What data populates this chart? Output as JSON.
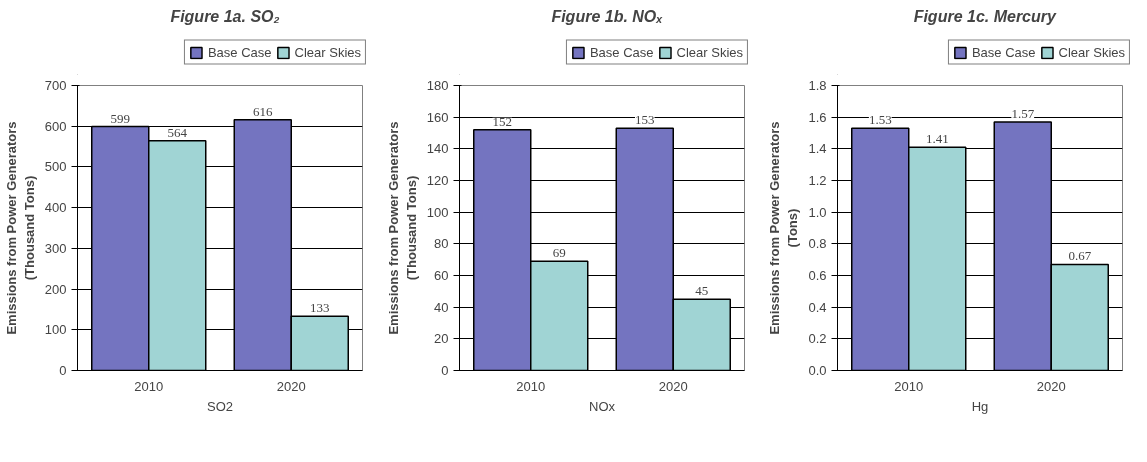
{
  "chart_data": [
    {
      "type": "bar",
      "title": "Figure 1a. SO₂",
      "xlabel": "SO2",
      "ylabel": "Emissions from Power Generators (Thousand Tons)",
      "categories": [
        "2010",
        "2020"
      ],
      "series": [
        {
          "name": "Base Case",
          "color": "#7474c0",
          "values": [
            599,
            616
          ]
        },
        {
          "name": "Clear Skies",
          "color": "#a0d4d4",
          "values": [
            564,
            133
          ]
        }
      ],
      "ylim": [
        0,
        700
      ],
      "yticks": [
        0,
        100,
        200,
        300,
        400,
        500,
        600,
        700
      ],
      "grid": "y",
      "legend": "top",
      "data_labels": true
    },
    {
      "type": "bar",
      "title": "Figure 1b. NOₓ",
      "xlabel": "NOx",
      "ylabel": "Emissions from Power Generators (Thousand Tons)",
      "categories": [
        "2010",
        "2020"
      ],
      "series": [
        {
          "name": "Base Case",
          "color": "#7474c0",
          "values": [
            152,
            153
          ]
        },
        {
          "name": "Clear Skies",
          "color": "#a0d4d4",
          "values": [
            69,
            45
          ]
        }
      ],
      "ylim": [
        0,
        180
      ],
      "yticks": [
        0,
        20,
        40,
        60,
        80,
        100,
        120,
        140,
        160,
        180
      ],
      "grid": "y",
      "legend": "top",
      "data_labels": true
    },
    {
      "type": "bar",
      "title": "Figure 1c.  Mercury",
      "xlabel": "Hg",
      "ylabel": "Emissions from Power Generators (Tons)",
      "categories": [
        "2010",
        "2020"
      ],
      "series": [
        {
          "name": "Base Case",
          "color": "#7474c0",
          "values": [
            1.53,
            1.57
          ]
        },
        {
          "name": "Clear Skies",
          "color": "#a0d4d4",
          "values": [
            1.41,
            0.67
          ]
        }
      ],
      "ylim": [
        0,
        1.8
      ],
      "yticks": [
        {
          "value": 0,
          "label": "0.0"
        },
        0.2,
        0.4,
        0.6,
        0.8,
        {
          "value": 1,
          "label": "1.0"
        },
        1.2,
        1.4,
        1.6,
        1.8
      ],
      "grid": "y",
      "legend": "top",
      "data_labels": true
    }
  ]
}
